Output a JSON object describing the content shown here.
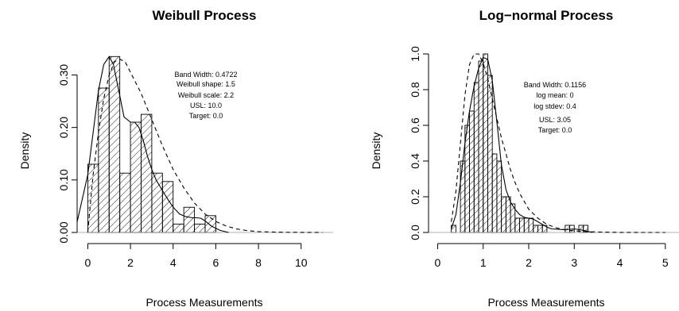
{
  "chart_data": [
    {
      "type": "bar",
      "title": "Weibull Process",
      "xlabel": "Process Measurements",
      "ylabel": "Density",
      "xlim": [
        -0.5,
        11.5
      ],
      "ylim": [
        0,
        0.34
      ],
      "xticks": [
        "0",
        "2",
        "4",
        "6",
        "8",
        "10"
      ],
      "yticks": [
        "0.00",
        "0.10",
        "0.20",
        "0.30"
      ],
      "bin_width": 0.5,
      "bins": [
        {
          "x0": 0.0,
          "x1": 0.5,
          "density": 0.13
        },
        {
          "x0": 0.5,
          "x1": 1.0,
          "density": 0.275
        },
        {
          "x0": 1.0,
          "x1": 1.5,
          "density": 0.335
        },
        {
          "x0": 1.5,
          "x1": 2.0,
          "density": 0.113
        },
        {
          "x0": 2.0,
          "x1": 2.5,
          "density": 0.21
        },
        {
          "x0": 2.5,
          "x1": 3.0,
          "density": 0.225
        },
        {
          "x0": 3.0,
          "x1": 3.5,
          "density": 0.113
        },
        {
          "x0": 3.5,
          "x1": 4.0,
          "density": 0.097
        },
        {
          "x0": 4.0,
          "x1": 4.5,
          "density": 0.016
        },
        {
          "x0": 4.5,
          "x1": 5.0,
          "density": 0.048
        },
        {
          "x0": 5.0,
          "x1": 5.5,
          "density": 0.016
        },
        {
          "x0": 5.5,
          "x1": 6.0,
          "density": 0.032
        }
      ],
      "series": [
        {
          "style": "solid",
          "x": [
            -0.5,
            0,
            0.25,
            0.5,
            0.75,
            1.0,
            1.2,
            1.5,
            1.7,
            2.0,
            2.2,
            2.4,
            2.6,
            2.8,
            3.0,
            3.2,
            3.5,
            3.8,
            4.0,
            4.3,
            4.6,
            4.9,
            5.1,
            5.3,
            5.5,
            5.8,
            6.2,
            6.6
          ],
          "y": [
            0.02,
            0.11,
            0.19,
            0.27,
            0.32,
            0.335,
            0.32,
            0.26,
            0.22,
            0.21,
            0.21,
            0.2,
            0.175,
            0.145,
            0.12,
            0.1,
            0.08,
            0.06,
            0.048,
            0.035,
            0.03,
            0.028,
            0.028,
            0.027,
            0.022,
            0.012,
            0.004,
            0.0
          ]
        },
        {
          "style": "dashed",
          "x": [
            0,
            0.25,
            0.5,
            0.75,
            1.0,
            1.25,
            1.5,
            1.75,
            2.0,
            2.5,
            3.0,
            3.5,
            4.0,
            4.5,
            5.0,
            5.5,
            6.0,
            6.5,
            7.0,
            7.5,
            8.0,
            9.0,
            10.0,
            11.0
          ],
          "y": [
            0.0,
            0.11,
            0.19,
            0.255,
            0.3,
            0.325,
            0.33,
            0.325,
            0.305,
            0.265,
            0.215,
            0.165,
            0.12,
            0.085,
            0.056,
            0.035,
            0.021,
            0.012,
            0.0065,
            0.0034,
            0.0017,
            0.0004,
            0.0001,
            0.0
          ]
        }
      ],
      "annotations": [
        "Band Width: 0.4722",
        "Weibull shape: 1.5",
        "Weibull scale: 2.2",
        "USL: 10.0",
        "Target: 0.0"
      ]
    },
    {
      "type": "bar",
      "title": "Log−normal Process",
      "xlabel": "Process Measurements",
      "ylabel": "Density",
      "xlim": [
        -0.2,
        5.3
      ],
      "ylim": [
        0,
        1.0
      ],
      "xticks": [
        "0",
        "1",
        "2",
        "3",
        "4",
        "5"
      ],
      "yticks": [
        "0.0",
        "0.2",
        "0.4",
        "0.6",
        "0.8",
        "1.0"
      ],
      "bin_width": 0.1,
      "bins": [
        {
          "x0": 0.3,
          "x1": 0.4,
          "density": 0.04
        },
        {
          "x0": 0.4,
          "x1": 0.5,
          "density": 0.0
        },
        {
          "x0": 0.5,
          "x1": 0.6,
          "density": 0.4
        },
        {
          "x0": 0.6,
          "x1": 0.7,
          "density": 0.6
        },
        {
          "x0": 0.7,
          "x1": 0.8,
          "density": 0.68
        },
        {
          "x0": 0.8,
          "x1": 0.9,
          "density": 0.84
        },
        {
          "x0": 0.9,
          "x1": 1.0,
          "density": 0.96
        },
        {
          "x0": 1.0,
          "x1": 1.1,
          "density": 1.0
        },
        {
          "x0": 1.1,
          "x1": 1.2,
          "density": 0.88
        },
        {
          "x0": 1.2,
          "x1": 1.3,
          "density": 0.44
        },
        {
          "x0": 1.3,
          "x1": 1.4,
          "density": 0.4
        },
        {
          "x0": 1.4,
          "x1": 1.5,
          "density": 0.2
        },
        {
          "x0": 1.5,
          "x1": 1.6,
          "density": 0.2
        },
        {
          "x0": 1.6,
          "x1": 1.7,
          "density": 0.16
        },
        {
          "x0": 1.7,
          "x1": 1.8,
          "density": 0.08
        },
        {
          "x0": 1.8,
          "x1": 1.9,
          "density": 0.08
        },
        {
          "x0": 1.9,
          "x1": 2.0,
          "density": 0.08
        },
        {
          "x0": 2.0,
          "x1": 2.1,
          "density": 0.08
        },
        {
          "x0": 2.1,
          "x1": 2.2,
          "density": 0.04
        },
        {
          "x0": 2.2,
          "x1": 2.3,
          "density": 0.04
        },
        {
          "x0": 2.3,
          "x1": 2.4,
          "density": 0.04
        },
        {
          "x0": 2.4,
          "x1": 2.5,
          "density": 0.0
        },
        {
          "x0": 2.5,
          "x1": 2.6,
          "density": 0.0
        },
        {
          "x0": 2.6,
          "x1": 2.7,
          "density": 0.0
        },
        {
          "x0": 2.7,
          "x1": 2.8,
          "density": 0.0
        },
        {
          "x0": 2.8,
          "x1": 2.9,
          "density": 0.04
        },
        {
          "x0": 2.9,
          "x1": 3.0,
          "density": 0.04
        },
        {
          "x0": 3.0,
          "x1": 3.1,
          "density": 0.0
        },
        {
          "x0": 3.1,
          "x1": 3.2,
          "density": 0.04
        },
        {
          "x0": 3.2,
          "x1": 3.3,
          "density": 0.04
        }
      ],
      "series": [
        {
          "style": "solid",
          "x": [
            0.3,
            0.4,
            0.5,
            0.6,
            0.7,
            0.8,
            0.9,
            1.0,
            1.1,
            1.2,
            1.3,
            1.4,
            1.5,
            1.6,
            1.7,
            1.8,
            1.9,
            2.0,
            2.1,
            2.2,
            2.3,
            2.4,
            2.5,
            2.8,
            3.0,
            3.2,
            3.4
          ],
          "y": [
            0.02,
            0.1,
            0.28,
            0.5,
            0.68,
            0.82,
            0.92,
            0.98,
            0.97,
            0.85,
            0.62,
            0.38,
            0.24,
            0.17,
            0.13,
            0.1,
            0.085,
            0.08,
            0.075,
            0.06,
            0.045,
            0.03,
            0.02,
            0.015,
            0.02,
            0.012,
            0.0
          ]
        },
        {
          "style": "dashed",
          "x": [
            0.3,
            0.4,
            0.5,
            0.6,
            0.7,
            0.8,
            0.9,
            1.0,
            1.1,
            1.2,
            1.3,
            1.4,
            1.5,
            1.6,
            1.7,
            1.8,
            2.0,
            2.2,
            2.4,
            2.6,
            2.8,
            3.0,
            3.3,
            3.6,
            4.0,
            4.5,
            5.0
          ],
          "y": [
            0.06,
            0.23,
            0.5,
            0.77,
            0.94,
            1.0,
            1.0,
            0.95,
            0.86,
            0.75,
            0.64,
            0.53,
            0.44,
            0.35,
            0.28,
            0.22,
            0.13,
            0.08,
            0.045,
            0.026,
            0.015,
            0.009,
            0.004,
            0.0018,
            0.0006,
            0.0001,
            0.0
          ]
        }
      ],
      "annotations": [
        "Band Width: 0.1156",
        "log mean: 0",
        "log stdev: 0.4",
        "USL: 3.05",
        "Target: 0.0"
      ]
    }
  ]
}
